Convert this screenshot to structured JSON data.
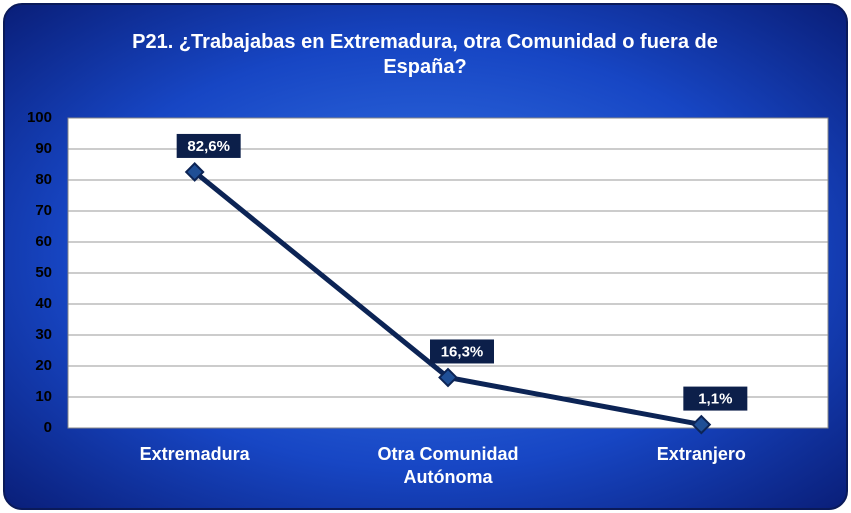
{
  "chart_data": {
    "type": "line",
    "title": "P21. ¿Trabajabas en Extremadura, otra Comunidad o fuera de España?",
    "categories": [
      "Extremadura",
      "Otra Comunidad Autónoma",
      "Extranjero"
    ],
    "series": [
      {
        "name": "P21",
        "color": "#0c2455",
        "values": [
          82.6,
          16.3,
          1.1
        ],
        "value_labels": [
          "82,6%",
          "16,3%",
          "1,1%"
        ]
      }
    ],
    "ylim": [
      0,
      100
    ],
    "yticks": [
      0,
      10,
      20,
      30,
      40,
      50,
      60,
      70,
      80,
      90,
      100
    ],
    "grid": true
  }
}
